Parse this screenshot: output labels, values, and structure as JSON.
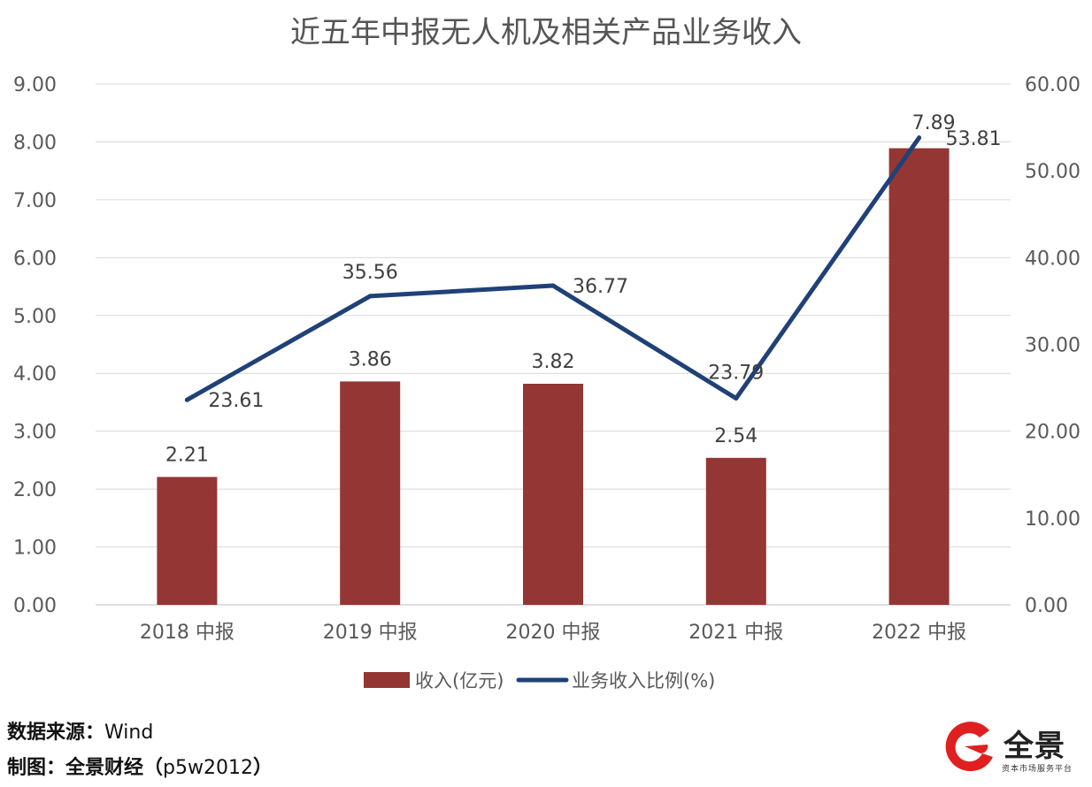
{
  "chart_data": {
    "type": "bar",
    "title": "近五年中报无人机及相关产品业务收入",
    "categories": [
      "2018 中报",
      "2019 中报",
      "2020 中报",
      "2021 中报",
      "2022 中报"
    ],
    "series": [
      {
        "name": "收入(亿元)",
        "type": "bar",
        "axis": "left",
        "color": "#943634",
        "values": [
          2.21,
          3.86,
          3.82,
          2.54,
          7.89
        ],
        "labels": [
          "2.21",
          "3.86",
          "3.82",
          "2.54",
          "7.89"
        ]
      },
      {
        "name": "业务收入比例(%)",
        "type": "line",
        "axis": "right",
        "color": "#1F4178",
        "values": [
          23.61,
          35.56,
          36.77,
          23.79,
          53.81
        ],
        "labels": [
          "23.61",
          "35.56",
          "36.77",
          "23.79",
          "53.81"
        ]
      }
    ],
    "left_axis": {
      "min": 0,
      "max": 9,
      "step": 1,
      "ticks": [
        "0.00",
        "1.00",
        "2.00",
        "3.00",
        "4.00",
        "5.00",
        "6.00",
        "7.00",
        "8.00",
        "9.00"
      ]
    },
    "right_axis": {
      "min": 0,
      "max": 60,
      "step": 10,
      "ticks": [
        "0.00",
        "10.00",
        "20.00",
        "30.00",
        "40.00",
        "50.00",
        "60.00"
      ]
    },
    "grid": true,
    "legend_position": "bottom"
  },
  "footer": {
    "source_label": "数据来源：",
    "source_value": "Wind",
    "maker_label": "制图：全景财经（",
    "maker_value": "p5w2012",
    "maker_close": "）"
  },
  "logo": {
    "name": "全景",
    "tagline": "资本市场服务平台",
    "color": "#E02020"
  }
}
